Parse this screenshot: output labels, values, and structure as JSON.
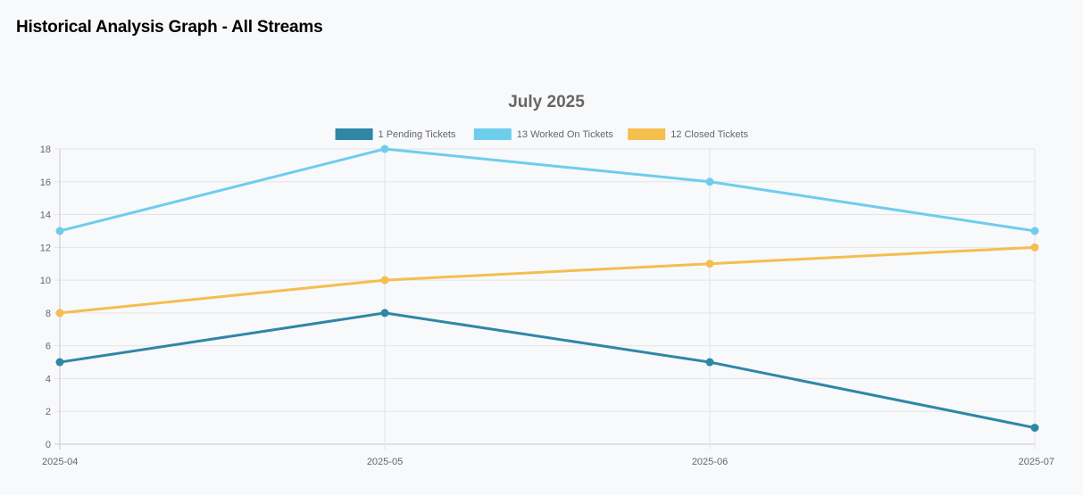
{
  "page": {
    "title": "Historical Analysis Graph - All Streams"
  },
  "chart_data": {
    "type": "line",
    "title": "July 2025",
    "xlabel": "",
    "ylabel": "",
    "categories": [
      "2025-04",
      "2025-05",
      "2025-06",
      "2025-07"
    ],
    "ylim": [
      0,
      18
    ],
    "yticks": [
      0,
      2,
      4,
      6,
      8,
      10,
      12,
      14,
      16,
      18
    ],
    "grid": true,
    "legend_position": "top",
    "series": [
      {
        "name": "1 Pending Tickets",
        "color": "#2f87a6",
        "values": [
          5,
          8,
          5,
          1
        ]
      },
      {
        "name": "13 Worked On Tickets",
        "color": "#6fcdec",
        "values": [
          13,
          18,
          16,
          13
        ]
      },
      {
        "name": "12 Closed Tickets",
        "color": "#f5be4f",
        "values": [
          8,
          10,
          11,
          12
        ]
      }
    ]
  }
}
